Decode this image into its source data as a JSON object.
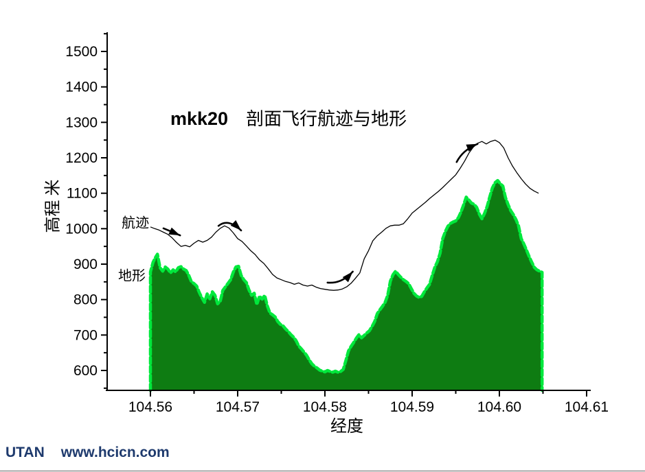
{
  "title": {
    "prefix": "mkk20",
    "main": "剖面飞行航迹与地形"
  },
  "footer": {
    "brand": "UTAN",
    "url": "www.hcicn.com"
  },
  "colors": {
    "terrain_fill": "#0e7c12",
    "terrain_outline": "#00e83c",
    "flight_line": "#000000",
    "axis": "#000000",
    "logo_blue": "#1e3a6d"
  },
  "chart_data": {
    "type": "area",
    "title": "mkk20 剖面飞行航迹与地形",
    "xlabel": "经度",
    "ylabel": "高程 米",
    "xlim": [
      104.555,
      104.611
    ],
    "ylim": [
      545,
      1555
    ],
    "grid": false,
    "x_ticks": [
      {
        "v": 104.56,
        "label": "104.56"
      },
      {
        "v": 104.57,
        "label": "104.57"
      },
      {
        "v": 104.58,
        "label": "104.58"
      },
      {
        "v": 104.59,
        "label": "104.59"
      },
      {
        "v": 104.6,
        "label": "104.60"
      },
      {
        "v": 104.61,
        "label": "104.61"
      }
    ],
    "x_minor_ticks": [
      104.565,
      104.575,
      104.585,
      104.595,
      104.605
    ],
    "y_ticks": [
      {
        "v": 600,
        "label": "600"
      },
      {
        "v": 700,
        "label": "700"
      },
      {
        "v": 800,
        "label": "800"
      },
      {
        "v": 900,
        "label": "900"
      },
      {
        "v": 1000,
        "label": "1000"
      },
      {
        "v": 1100,
        "label": "1100"
      },
      {
        "v": 1200,
        "label": "1200"
      },
      {
        "v": 1300,
        "label": "1300"
      },
      {
        "v": 1400,
        "label": "1400"
      },
      {
        "v": 1500,
        "label": "1500"
      }
    ],
    "y_minor_ticks": [
      550,
      650,
      750,
      850,
      950,
      1050,
      1150,
      1250,
      1350,
      1450,
      1550
    ],
    "series_labels": [
      {
        "text": "航迹",
        "x": 104.5567,
        "y": 1004
      },
      {
        "text": "地形",
        "x": 104.5563,
        "y": 855
      }
    ],
    "arrows": [
      {
        "tail": [
          104.5615,
          1001
        ],
        "ctrl": [
          104.5624,
          992
        ],
        "tip": [
          104.5634,
          981
        ]
      },
      {
        "tail": [
          104.5678,
          1008
        ],
        "ctrl": [
          104.5689,
          1030
        ],
        "tip": [
          104.5704,
          995
        ]
      },
      {
        "tail": [
          104.5803,
          848
        ],
        "ctrl": [
          104.5819,
          844
        ],
        "tip": [
          104.5832,
          879
        ]
      },
      {
        "tail": [
          104.5951,
          1188
        ],
        "ctrl": [
          104.5958,
          1222
        ],
        "tip": [
          104.5975,
          1239
        ]
      }
    ],
    "series": [
      {
        "name": "地形",
        "type": "area",
        "points": [
          [
            104.56,
            878
          ],
          [
            104.5603,
            905
          ],
          [
            104.5606,
            920
          ],
          [
            104.5608,
            928
          ],
          [
            104.5611,
            890
          ],
          [
            104.5614,
            880
          ],
          [
            104.5617,
            892
          ],
          [
            104.562,
            886
          ],
          [
            104.5623,
            875
          ],
          [
            104.5626,
            884
          ],
          [
            104.5629,
            878
          ],
          [
            104.5632,
            890
          ],
          [
            104.5635,
            893
          ],
          [
            104.5638,
            886
          ],
          [
            104.5641,
            882
          ],
          [
            104.5644,
            868
          ],
          [
            104.5647,
            850
          ],
          [
            104.565,
            845
          ],
          [
            104.5653,
            838
          ],
          [
            104.5656,
            820
          ],
          [
            104.5659,
            805
          ],
          [
            104.5662,
            792
          ],
          [
            104.5665,
            816
          ],
          [
            104.5668,
            802
          ],
          [
            104.5671,
            822
          ],
          [
            104.5674,
            812
          ],
          [
            104.5677,
            788
          ],
          [
            104.568,
            795
          ],
          [
            104.5683,
            826
          ],
          [
            104.5686,
            836
          ],
          [
            104.5689,
            846
          ],
          [
            104.5692,
            856
          ],
          [
            104.5695,
            878
          ],
          [
            104.5698,
            892
          ],
          [
            104.5701,
            894
          ],
          [
            104.5704,
            868
          ],
          [
            104.5707,
            856
          ],
          [
            104.571,
            848
          ],
          [
            104.5713,
            827
          ],
          [
            104.5716,
            812
          ],
          [
            104.5719,
            818
          ],
          [
            104.5722,
            786
          ],
          [
            104.5725,
            810
          ],
          [
            104.5728,
            801
          ],
          [
            104.5731,
            812
          ],
          [
            104.5734,
            782
          ],
          [
            104.5737,
            762
          ],
          [
            104.574,
            757
          ],
          [
            104.5743,
            751
          ],
          [
            104.5746,
            738
          ],
          [
            104.5749,
            730
          ],
          [
            104.5752,
            726
          ],
          [
            104.5755,
            717
          ],
          [
            104.5758,
            710
          ],
          [
            104.5761,
            701
          ],
          [
            104.5764,
            694
          ],
          [
            104.5767,
            684
          ],
          [
            104.577,
            669
          ],
          [
            104.5773,
            661
          ],
          [
            104.5776,
            652
          ],
          [
            104.5779,
            643
          ],
          [
            104.5782,
            630
          ],
          [
            104.5785,
            619
          ],
          [
            104.5788,
            612
          ],
          [
            104.5791,
            607
          ],
          [
            104.5794,
            601
          ],
          [
            104.5797,
            598
          ],
          [
            104.58,
            596
          ],
          [
            104.5803,
            600
          ],
          [
            104.5806,
            597
          ],
          [
            104.5809,
            595
          ],
          [
            104.5812,
            598
          ],
          [
            104.5815,
            595
          ],
          [
            104.5818,
            597
          ],
          [
            104.5821,
            603
          ],
          [
            104.5824,
            628
          ],
          [
            104.5827,
            655
          ],
          [
            104.583,
            668
          ],
          [
            104.5833,
            679
          ],
          [
            104.5836,
            691
          ],
          [
            104.5839,
            701
          ],
          [
            104.5842,
            692
          ],
          [
            104.5845,
            699
          ],
          [
            104.5848,
            706
          ],
          [
            104.5851,
            712
          ],
          [
            104.5854,
            724
          ],
          [
            104.5857,
            738
          ],
          [
            104.586,
            760
          ],
          [
            104.5863,
            771
          ],
          [
            104.5866,
            781
          ],
          [
            104.5869,
            792
          ],
          [
            104.5872,
            812
          ],
          [
            104.5875,
            852
          ],
          [
            104.5878,
            870
          ],
          [
            104.5881,
            880
          ],
          [
            104.5884,
            871
          ],
          [
            104.5887,
            863
          ],
          [
            104.589,
            856
          ],
          [
            104.5893,
            851
          ],
          [
            104.5896,
            845
          ],
          [
            104.5899,
            831
          ],
          [
            104.5902,
            818
          ],
          [
            104.5905,
            810
          ],
          [
            104.5908,
            806
          ],
          [
            104.5911,
            809
          ],
          [
            104.5914,
            822
          ],
          [
            104.5917,
            833
          ],
          [
            104.592,
            843
          ],
          [
            104.5923,
            868
          ],
          [
            104.5926,
            891
          ],
          [
            104.5929,
            907
          ],
          [
            104.5932,
            930
          ],
          [
            104.5935,
            972
          ],
          [
            104.5938,
            992
          ],
          [
            104.5941,
            1007
          ],
          [
            104.5944,
            1015
          ],
          [
            104.5947,
            1019
          ],
          [
            104.595,
            1022
          ],
          [
            104.5953,
            1031
          ],
          [
            104.5956,
            1047
          ],
          [
            104.5959,
            1067
          ],
          [
            104.5962,
            1089
          ],
          [
            104.5965,
            1081
          ],
          [
            104.5968,
            1072
          ],
          [
            104.5971,
            1069
          ],
          [
            104.5974,
            1060
          ],
          [
            104.5977,
            1041
          ],
          [
            104.598,
            1028
          ],
          [
            104.5983,
            1043
          ],
          [
            104.5986,
            1063
          ],
          [
            104.5989,
            1090
          ],
          [
            104.5992,
            1115
          ],
          [
            104.5995,
            1130
          ],
          [
            104.5998,
            1136
          ],
          [
            104.6001,
            1127
          ],
          [
            104.6004,
            1120
          ],
          [
            104.6007,
            1088
          ],
          [
            104.601,
            1068
          ],
          [
            104.6013,
            1051
          ],
          [
            104.6016,
            1040
          ],
          [
            104.6019,
            1026
          ],
          [
            104.6022,
            1008
          ],
          [
            104.6025,
            972
          ],
          [
            104.6028,
            957
          ],
          [
            104.6031,
            940
          ],
          [
            104.6034,
            922
          ],
          [
            104.6037,
            906
          ],
          [
            104.604,
            891
          ],
          [
            104.6043,
            884
          ],
          [
            104.6046,
            880
          ],
          [
            104.6049,
            877
          ]
        ]
      },
      {
        "name": "航迹",
        "type": "line",
        "points": [
          [
            104.56,
            1005
          ],
          [
            104.5605,
            1000
          ],
          [
            104.561,
            996
          ],
          [
            104.5615,
            990
          ],
          [
            104.562,
            984
          ],
          [
            104.5625,
            974
          ],
          [
            104.563,
            961
          ],
          [
            104.5635,
            950
          ],
          [
            104.564,
            953
          ],
          [
            104.5645,
            949
          ],
          [
            104.565,
            959
          ],
          [
            104.5655,
            967
          ],
          [
            104.566,
            962
          ],
          [
            104.5665,
            967
          ],
          [
            104.567,
            976
          ],
          [
            104.5675,
            990
          ],
          [
            104.568,
            1001
          ],
          [
            104.5685,
            1008
          ],
          [
            104.569,
            1002
          ],
          [
            104.5695,
            988
          ],
          [
            104.57,
            972
          ],
          [
            104.5705,
            964
          ],
          [
            104.571,
            951
          ],
          [
            104.5715,
            938
          ],
          [
            104.572,
            927
          ],
          [
            104.5725,
            912
          ],
          [
            104.573,
            902
          ],
          [
            104.5735,
            887
          ],
          [
            104.574,
            871
          ],
          [
            104.5745,
            861
          ],
          [
            104.575,
            856
          ],
          [
            104.5755,
            851
          ],
          [
            104.576,
            848
          ],
          [
            104.5765,
            843
          ],
          [
            104.577,
            847
          ],
          [
            104.5775,
            841
          ],
          [
            104.578,
            838
          ],
          [
            104.5785,
            841
          ],
          [
            104.579,
            835
          ],
          [
            104.5795,
            831
          ],
          [
            104.58,
            829
          ],
          [
            104.5805,
            827
          ],
          [
            104.581,
            826
          ],
          [
            104.5815,
            827
          ],
          [
            104.582,
            830
          ],
          [
            104.5825,
            836
          ],
          [
            104.583,
            846
          ],
          [
            104.5835,
            860
          ],
          [
            104.584,
            875
          ],
          [
            104.5845,
            915
          ],
          [
            104.585,
            938
          ],
          [
            104.5855,
            966
          ],
          [
            104.586,
            980
          ],
          [
            104.5865,
            990
          ],
          [
            104.587,
            1001
          ],
          [
            104.5875,
            1008
          ],
          [
            104.588,
            1010
          ],
          [
            104.5885,
            1010
          ],
          [
            104.589,
            1014
          ],
          [
            104.5895,
            1028
          ],
          [
            104.59,
            1044
          ],
          [
            104.5905,
            1054
          ],
          [
            104.591,
            1064
          ],
          [
            104.5915,
            1074
          ],
          [
            104.592,
            1085
          ],
          [
            104.5925,
            1095
          ],
          [
            104.593,
            1105
          ],
          [
            104.5935,
            1116
          ],
          [
            104.594,
            1128
          ],
          [
            104.5945,
            1140
          ],
          [
            104.595,
            1152
          ],
          [
            104.5955,
            1170
          ],
          [
            104.596,
            1190
          ],
          [
            104.5965,
            1213
          ],
          [
            104.597,
            1230
          ],
          [
            104.5975,
            1241
          ],
          [
            104.598,
            1246
          ],
          [
            104.5985,
            1239
          ],
          [
            104.599,
            1246
          ],
          [
            104.5995,
            1250
          ],
          [
            104.6,
            1243
          ],
          [
            104.6005,
            1228
          ],
          [
            104.601,
            1200
          ],
          [
            104.6015,
            1177
          ],
          [
            104.602,
            1158
          ],
          [
            104.6025,
            1141
          ],
          [
            104.603,
            1126
          ],
          [
            104.6035,
            1114
          ],
          [
            104.604,
            1106
          ],
          [
            104.6045,
            1100
          ]
        ]
      }
    ]
  }
}
